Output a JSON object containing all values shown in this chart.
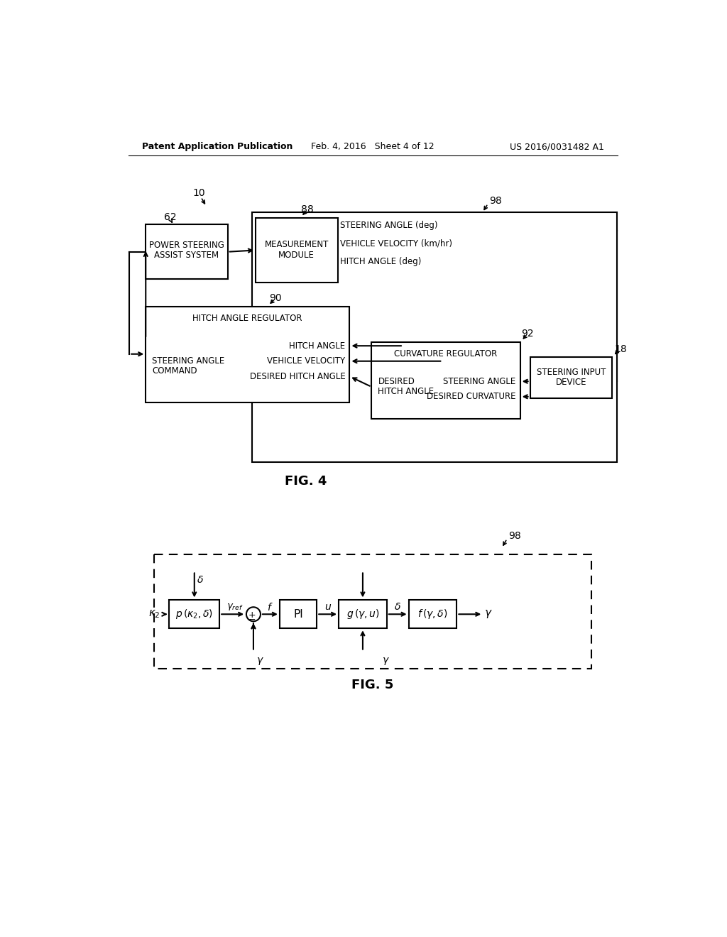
{
  "bg": "#ffffff",
  "lc": "#000000",
  "header_left": "Patent Application Publication",
  "header_mid": "Feb. 4, 2016   Sheet 4 of 12",
  "header_right": "US 2016/0031482 A1",
  "fig4_caption": "FIG. 4",
  "fig5_caption": "FIG. 5",
  "lbl_10": "10",
  "lbl_62": "62",
  "lbl_88": "88",
  "lbl_90": "90",
  "lbl_92": "92",
  "lbl_98a": "98",
  "lbl_98b": "98",
  "lbl_18": "18",
  "mm_line1": "MEASUREMENT",
  "mm_line2": "MODULE",
  "ps_line1": "POWER STEERING",
  "ps_line2": "ASSIST SYSTEM",
  "har_title": "HITCH ANGLE REGULATOR",
  "har_left1": "STEERING ANGLE",
  "har_left2": "COMMAND",
  "har_in1": "HITCH ANGLE",
  "har_in2": "VEHICLE VELOCITY",
  "har_in3": "DESIRED HITCH ANGLE",
  "cr_title": "CURVATURE REGULATOR",
  "cr_l1": "DESIRED",
  "cr_l2": "HITCH ANGLE",
  "cr_r1": "STEERING ANGLE",
  "cr_r2": "DESIRED CURVATURE",
  "sid_line1": "STEERING INPUT",
  "sid_line2": "DEVICE",
  "mm_out1": "STEERING ANGLE (deg)",
  "mm_out2": "VEHICLE VELOCITY (km/hr)",
  "mm_out3": "HITCH ANGLE (deg)"
}
